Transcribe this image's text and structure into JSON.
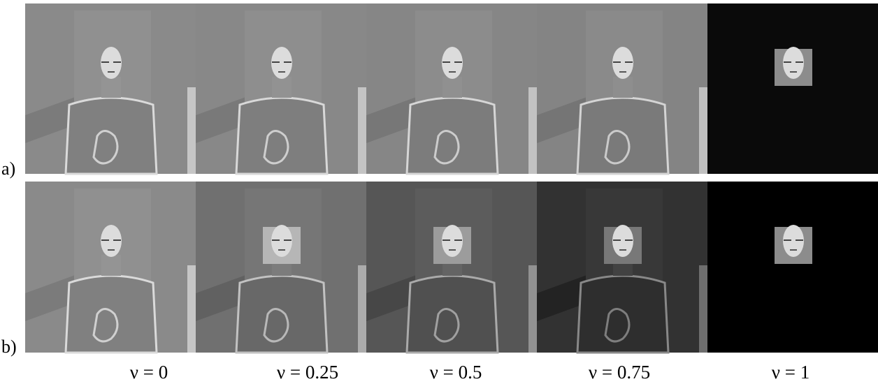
{
  "figure": {
    "rows": [
      {
        "label": "a)"
      },
      {
        "label": "b)"
      }
    ],
    "captions": [
      "ν = 0",
      "ν = 0.25",
      "ν = 0.5",
      "ν = 0.75",
      "ν = 1"
    ]
  }
}
